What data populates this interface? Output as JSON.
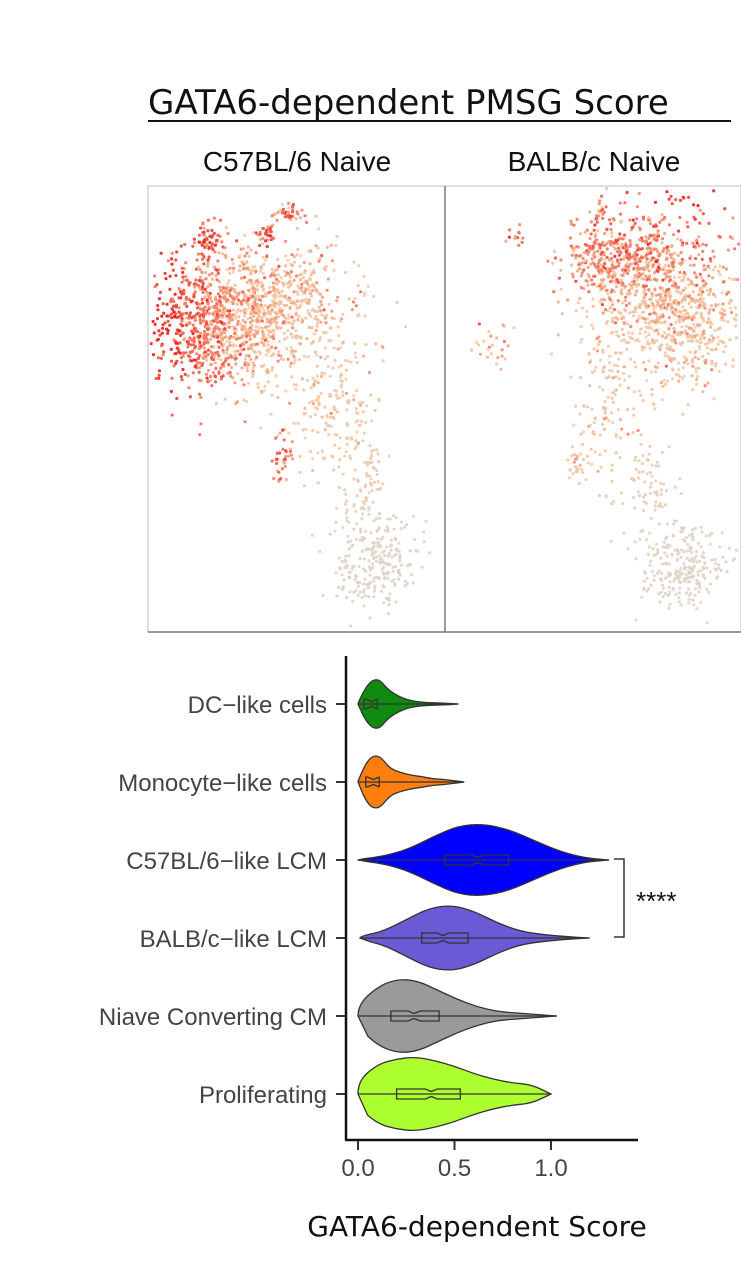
{
  "title": "GATA6-dependent PMSG Score",
  "panels": [
    "C57BL/6 Naive",
    "BALB/c Naive"
  ],
  "chart_data": [
    {
      "type": "scatter",
      "subtype": "umap-feature-plot",
      "panels": [
        "C57BL/6 Naive",
        "BALB/c Naive"
      ],
      "color_scale": {
        "low": "#d9d4cc",
        "mid": "#f6c39a",
        "high": "#e8100a"
      },
      "note_colors": "points colored by GATA6-dependent PMSG score"
    },
    {
      "type": "violin",
      "xlabel": "GATA6-dependent Score",
      "xlim": [
        0,
        1.45
      ],
      "xticks": [
        "0.0",
        "0.5",
        "1.0"
      ],
      "categories": [
        {
          "label": "DC−like cells",
          "color": "#118a11",
          "min": 0.0,
          "max": 0.52,
          "q1": 0.03,
          "median": 0.07,
          "q3": 0.1
        },
        {
          "label": "Monocyte−like cells",
          "color": "#ff7f0e",
          "min": 0.0,
          "max": 0.55,
          "q1": 0.04,
          "median": 0.08,
          "q3": 0.11
        },
        {
          "label": "C57BL/6−like LCM",
          "color": "#0000ff",
          "min": 0.0,
          "max": 1.3,
          "q1": 0.45,
          "median": 0.62,
          "q3": 0.78
        },
        {
          "label": "BALB/c−like LCM",
          "color": "#6a5ad6",
          "min": 0.01,
          "max": 1.2,
          "q1": 0.33,
          "median": 0.44,
          "q3": 0.57
        },
        {
          "label": "Niave Converting CM",
          "color": "#9a9a9a",
          "min": 0.0,
          "max": 1.03,
          "q1": 0.17,
          "median": 0.29,
          "q3": 0.42
        },
        {
          "label": "Proliferating",
          "color": "#adff2f",
          "min": 0.0,
          "max": 1.0,
          "q1": 0.2,
          "median": 0.38,
          "q3": 0.53
        }
      ],
      "significance": {
        "between": [
          "C57BL/6−like LCM",
          "BALB/c−like LCM"
        ],
        "label": "****"
      }
    }
  ]
}
